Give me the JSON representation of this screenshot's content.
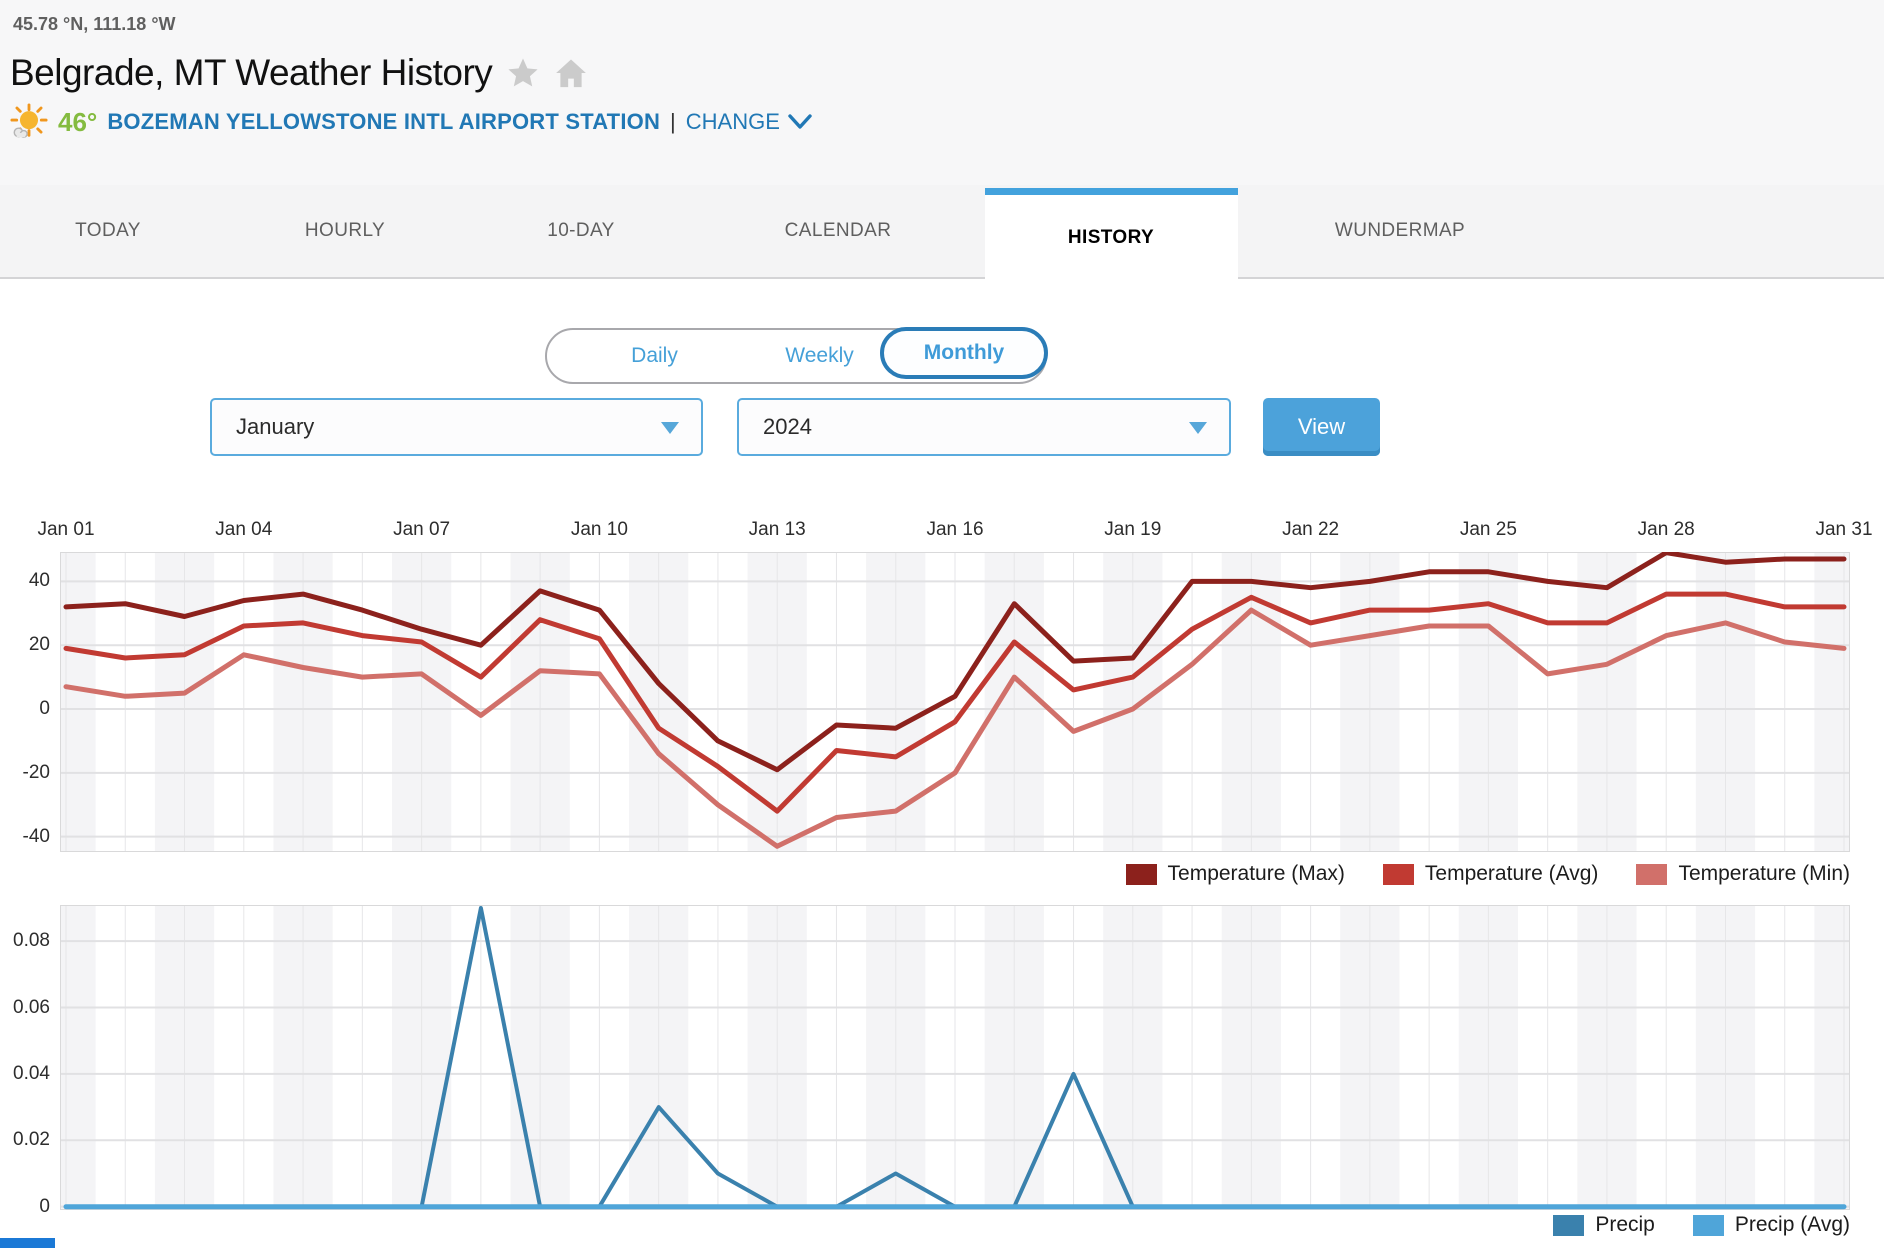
{
  "header": {
    "coordinates": "45.78 °N, 111.18 °W",
    "title": "Belgrade, MT Weather History",
    "current_temp": "46°",
    "station_name": "BOZEMAN YELLOWSTONE INTL AIRPORT STATION",
    "separator": "|",
    "change_label": "CHANGE",
    "icons": [
      "sun-with-cloud-icon",
      "star-icon",
      "home-icon",
      "chevron-down-icon"
    ]
  },
  "tabs": [
    {
      "label": "TODAY",
      "active": false
    },
    {
      "label": "HOURLY",
      "active": false
    },
    {
      "label": "10-DAY",
      "active": false
    },
    {
      "label": "CALENDAR",
      "active": false
    },
    {
      "label": "HISTORY",
      "active": true
    },
    {
      "label": "WUNDERMAP",
      "active": false
    }
  ],
  "view_toggle": {
    "options": [
      "Daily",
      "Weekly",
      "Monthly"
    ],
    "selected": "Monthly"
  },
  "controls": {
    "month": "January",
    "year": "2024",
    "view_button": "View"
  },
  "colors": {
    "accent_blue": "#43a2dd",
    "link_blue": "#2178b5",
    "temp_green": "#84bb40",
    "temp_max": "#8c211c",
    "temp_avg": "#c13a32",
    "temp_min": "#d1706a",
    "precip": "#3a81ad",
    "precip_avg": "#4fa5d9",
    "band_gray": "#f4f4f6"
  },
  "chart_data": [
    {
      "type": "line",
      "title": "Temperature history (daily, Jan 2024)",
      "x_ticks": [
        {
          "day": 1,
          "label": "Jan 01"
        },
        {
          "day": 4,
          "label": "Jan 04"
        },
        {
          "day": 7,
          "label": "Jan 07"
        },
        {
          "day": 10,
          "label": "Jan 10"
        },
        {
          "day": 13,
          "label": "Jan 13"
        },
        {
          "day": 16,
          "label": "Jan 16"
        },
        {
          "day": 19,
          "label": "Jan 19"
        },
        {
          "day": 22,
          "label": "Jan 22"
        },
        {
          "day": 25,
          "label": "Jan 25"
        },
        {
          "day": 28,
          "label": "Jan 28"
        },
        {
          "day": 31,
          "label": "Jan 31"
        }
      ],
      "yticks": [
        {
          "v": 40,
          "label": "40"
        },
        {
          "v": 20,
          "label": "20"
        },
        {
          "v": 0,
          "label": "0"
        },
        {
          "v": -20,
          "label": "-20"
        },
        {
          "v": -40,
          "label": "-40"
        }
      ],
      "ylim": [
        -44.8,
        49.2
      ],
      "grid": true,
      "legend_position": "bottom-right",
      "unit": "F",
      "series": [
        {
          "name": "Temperature (Max)",
          "color": "#8c211c",
          "width": 5,
          "values": [
            32,
            33,
            29,
            34,
            36,
            31,
            25,
            20,
            37,
            31,
            8,
            -10,
            -19,
            -5,
            -6,
            4,
            33,
            15,
            16,
            40,
            40,
            38,
            40,
            43,
            43,
            40,
            38,
            49,
            46,
            47,
            47
          ]
        },
        {
          "name": "Temperature (Avg)",
          "color": "#c13a32",
          "width": 5,
          "values": [
            19,
            16,
            17,
            26,
            27,
            23,
            21,
            10,
            28,
            22,
            -6,
            -18,
            -32,
            -13,
            -15,
            -4,
            21,
            6,
            10,
            25,
            35,
            27,
            31,
            31,
            33,
            27,
            27,
            36,
            36,
            32,
            32
          ]
        },
        {
          "name": "Temperature (Min)",
          "color": "#d1706a",
          "width": 5,
          "values": [
            7,
            4,
            5,
            17,
            13,
            10,
            11,
            -2,
            12,
            11,
            -14,
            -30,
            -43,
            -34,
            -32,
            -20,
            10,
            -7,
            0,
            14,
            31,
            20,
            23,
            26,
            26,
            11,
            14,
            23,
            27,
            21,
            19
          ]
        }
      ]
    },
    {
      "type": "line",
      "title": "Precipitation history (daily, Jan 2024)",
      "x_ticks": [],
      "yticks": [
        {
          "v": 0.08,
          "label": "0.08"
        },
        {
          "v": 0.06,
          "label": "0.06"
        },
        {
          "v": 0.04,
          "label": "0.04"
        },
        {
          "v": 0.02,
          "label": "0.02"
        },
        {
          "v": 0,
          "label": "0"
        }
      ],
      "ylim": [
        -0.001,
        0.0909
      ],
      "grid": true,
      "legend_position": "bottom-right",
      "unit": "in",
      "series": [
        {
          "name": "Precip",
          "color": "#3a81ad",
          "width": 4,
          "values": [
            0,
            0,
            0,
            0,
            0,
            0,
            0,
            0.09,
            0,
            0,
            0.03,
            0.01,
            0,
            0,
            0.01,
            0,
            0,
            0.04,
            0,
            0,
            0,
            0,
            0,
            0,
            0,
            0,
            0,
            0,
            0,
            0,
            0
          ]
        },
        {
          "name": "Precip (Avg)",
          "color": "#4fa5d9",
          "width": 5,
          "values": [
            0,
            0,
            0,
            0,
            0,
            0,
            0,
            0,
            0,
            0,
            0,
            0,
            0,
            0,
            0,
            0,
            0,
            0,
            0,
            0,
            0,
            0,
            0,
            0,
            0,
            0,
            0,
            0,
            0,
            0,
            0
          ]
        }
      ]
    }
  ]
}
